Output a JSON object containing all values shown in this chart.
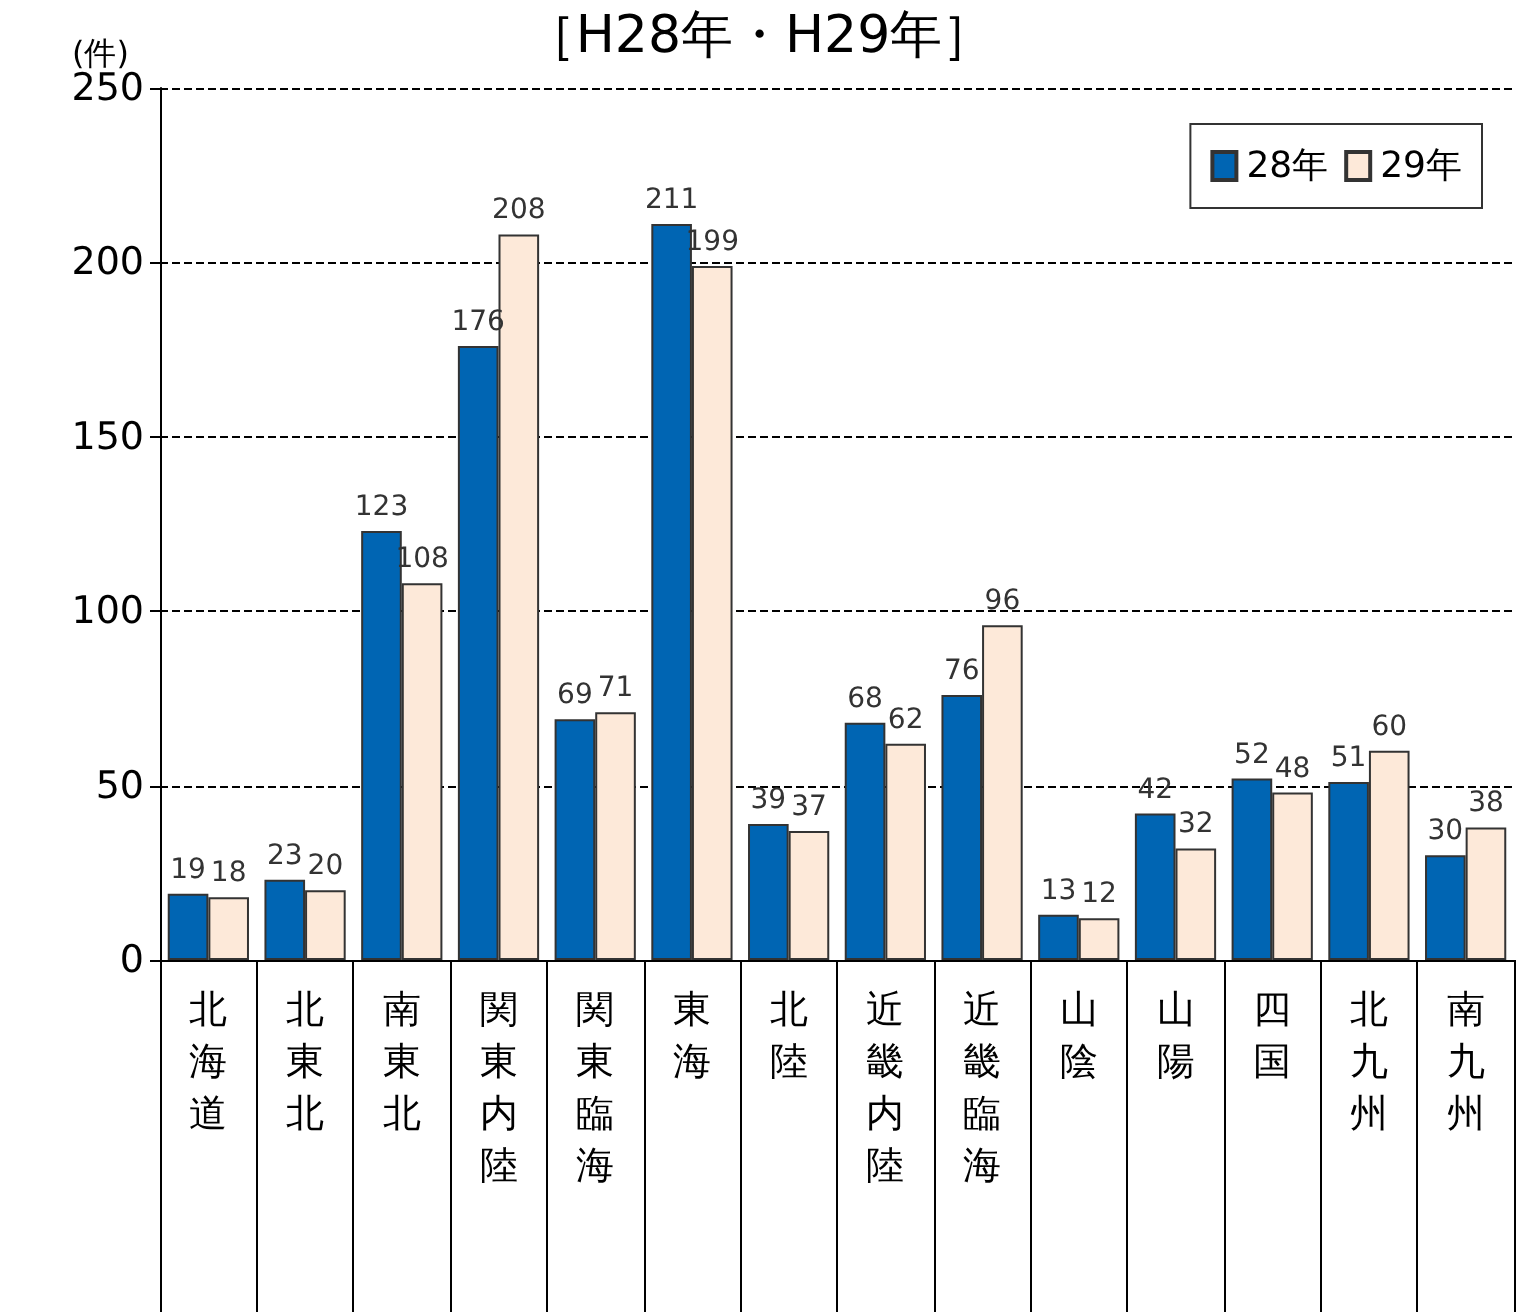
{
  "chart_data": {
    "type": "bar",
    "title": "［H28年・H29年］",
    "ylabel": "(件)",
    "categories": [
      "北海道",
      "北東北",
      "南東北",
      "関東内陸",
      "関東臨海",
      "東海",
      "北陸",
      "近畿内陸",
      "近畿臨海",
      "山陰",
      "山陽",
      "四国",
      "北九州",
      "南九州"
    ],
    "series": [
      {
        "name": "28年",
        "color": "#0065b3",
        "values": [
          19,
          23,
          123,
          176,
          69,
          211,
          39,
          68,
          76,
          13,
          42,
          52,
          51,
          30
        ]
      },
      {
        "name": "29年",
        "color": "#fde9d9",
        "values": [
          18,
          20,
          108,
          208,
          71,
          199,
          37,
          62,
          96,
          12,
          32,
          48,
          60,
          38
        ]
      }
    ],
    "ylim": [
      0,
      250
    ],
    "yticks": [
      0,
      50,
      100,
      150,
      200,
      250
    ],
    "grid": "y",
    "legend": "top right",
    "data_labels": true
  }
}
